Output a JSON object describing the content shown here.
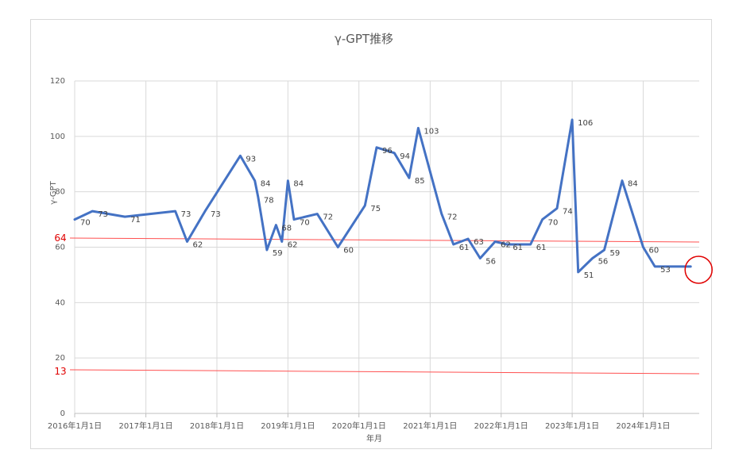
{
  "chart_data": {
    "type": "line",
    "title": "γ-GPT推移",
    "xlabel": "年月",
    "ylabel": "γ-GPT",
    "ylim": [
      0,
      120
    ],
    "yticks": [
      0,
      20,
      40,
      60,
      80,
      100,
      120
    ],
    "grid": true,
    "x_ticks": [
      "2016年1月1日",
      "2017年1月1日",
      "2018年1月1日",
      "2019年1月1日",
      "2020年1月1日",
      "2021年1月1日",
      "2022年1月1日",
      "2023年1月1日",
      "2024年1月1日"
    ],
    "x_range": [
      "2016-01-01",
      "2024-10-15"
    ],
    "series_color": "#4472c4",
    "series": [
      {
        "x": [
          "2016-01-01",
          "2016-04-01",
          "2016-09-15",
          "2017-06-01",
          "2017-08-01",
          "2017-11-01",
          "2018-05-01",
          "2018-07-15",
          "2018-08-01",
          "2018-09-15",
          "2018-11-01",
          "2018-12-01",
          "2019-01-01",
          "2019-02-01",
          "2019-06-01",
          "2019-09-15",
          "2020-02-01",
          "2020-04-01",
          "2020-07-01",
          "2020-09-15",
          "2020-11-01",
          "2021-03-01",
          "2021-05-01",
          "2021-07-15",
          "2021-09-15",
          "2021-12-01",
          "2022-02-01",
          "2022-06-01",
          "2022-08-01",
          "2022-10-15",
          "2023-01-01",
          "2023-02-01",
          "2023-04-15",
          "2023-06-15",
          "2023-09-15",
          "2024-01-01",
          "2024-03-01",
          "2024-06-01",
          "2024-09-01"
        ],
        "values": [
          70,
          73,
          71,
          73,
          62,
          73,
          93,
          84,
          78,
          59,
          68,
          62,
          84,
          70,
          72,
          60,
          75,
          96,
          94,
          85,
          103,
          72,
          61,
          63,
          56,
          62,
          61,
          61,
          70,
          74,
          106,
          51,
          56,
          59,
          84,
          60,
          53,
          53,
          53
        ]
      }
    ],
    "data_labels": [
      "70",
      "73",
      "71",
      "73",
      "62",
      "73",
      "93",
      "84",
      "78",
      "59",
      "68",
      "62",
      "84",
      "70",
      "72",
      "60",
      "75",
      "96",
      "94",
      "85",
      "103",
      "72",
      "61",
      "63",
      "56",
      "62",
      "61",
      "61",
      "70",
      "74",
      "106",
      "51",
      "56",
      "59",
      "84",
      "60",
      "53"
    ],
    "reference_lines": [
      {
        "label": "64",
        "color": "#ff5050"
      },
      {
        "label": "13",
        "color": "#ff5050"
      }
    ],
    "highlight": {
      "label": "53",
      "color": "#e00000"
    }
  }
}
